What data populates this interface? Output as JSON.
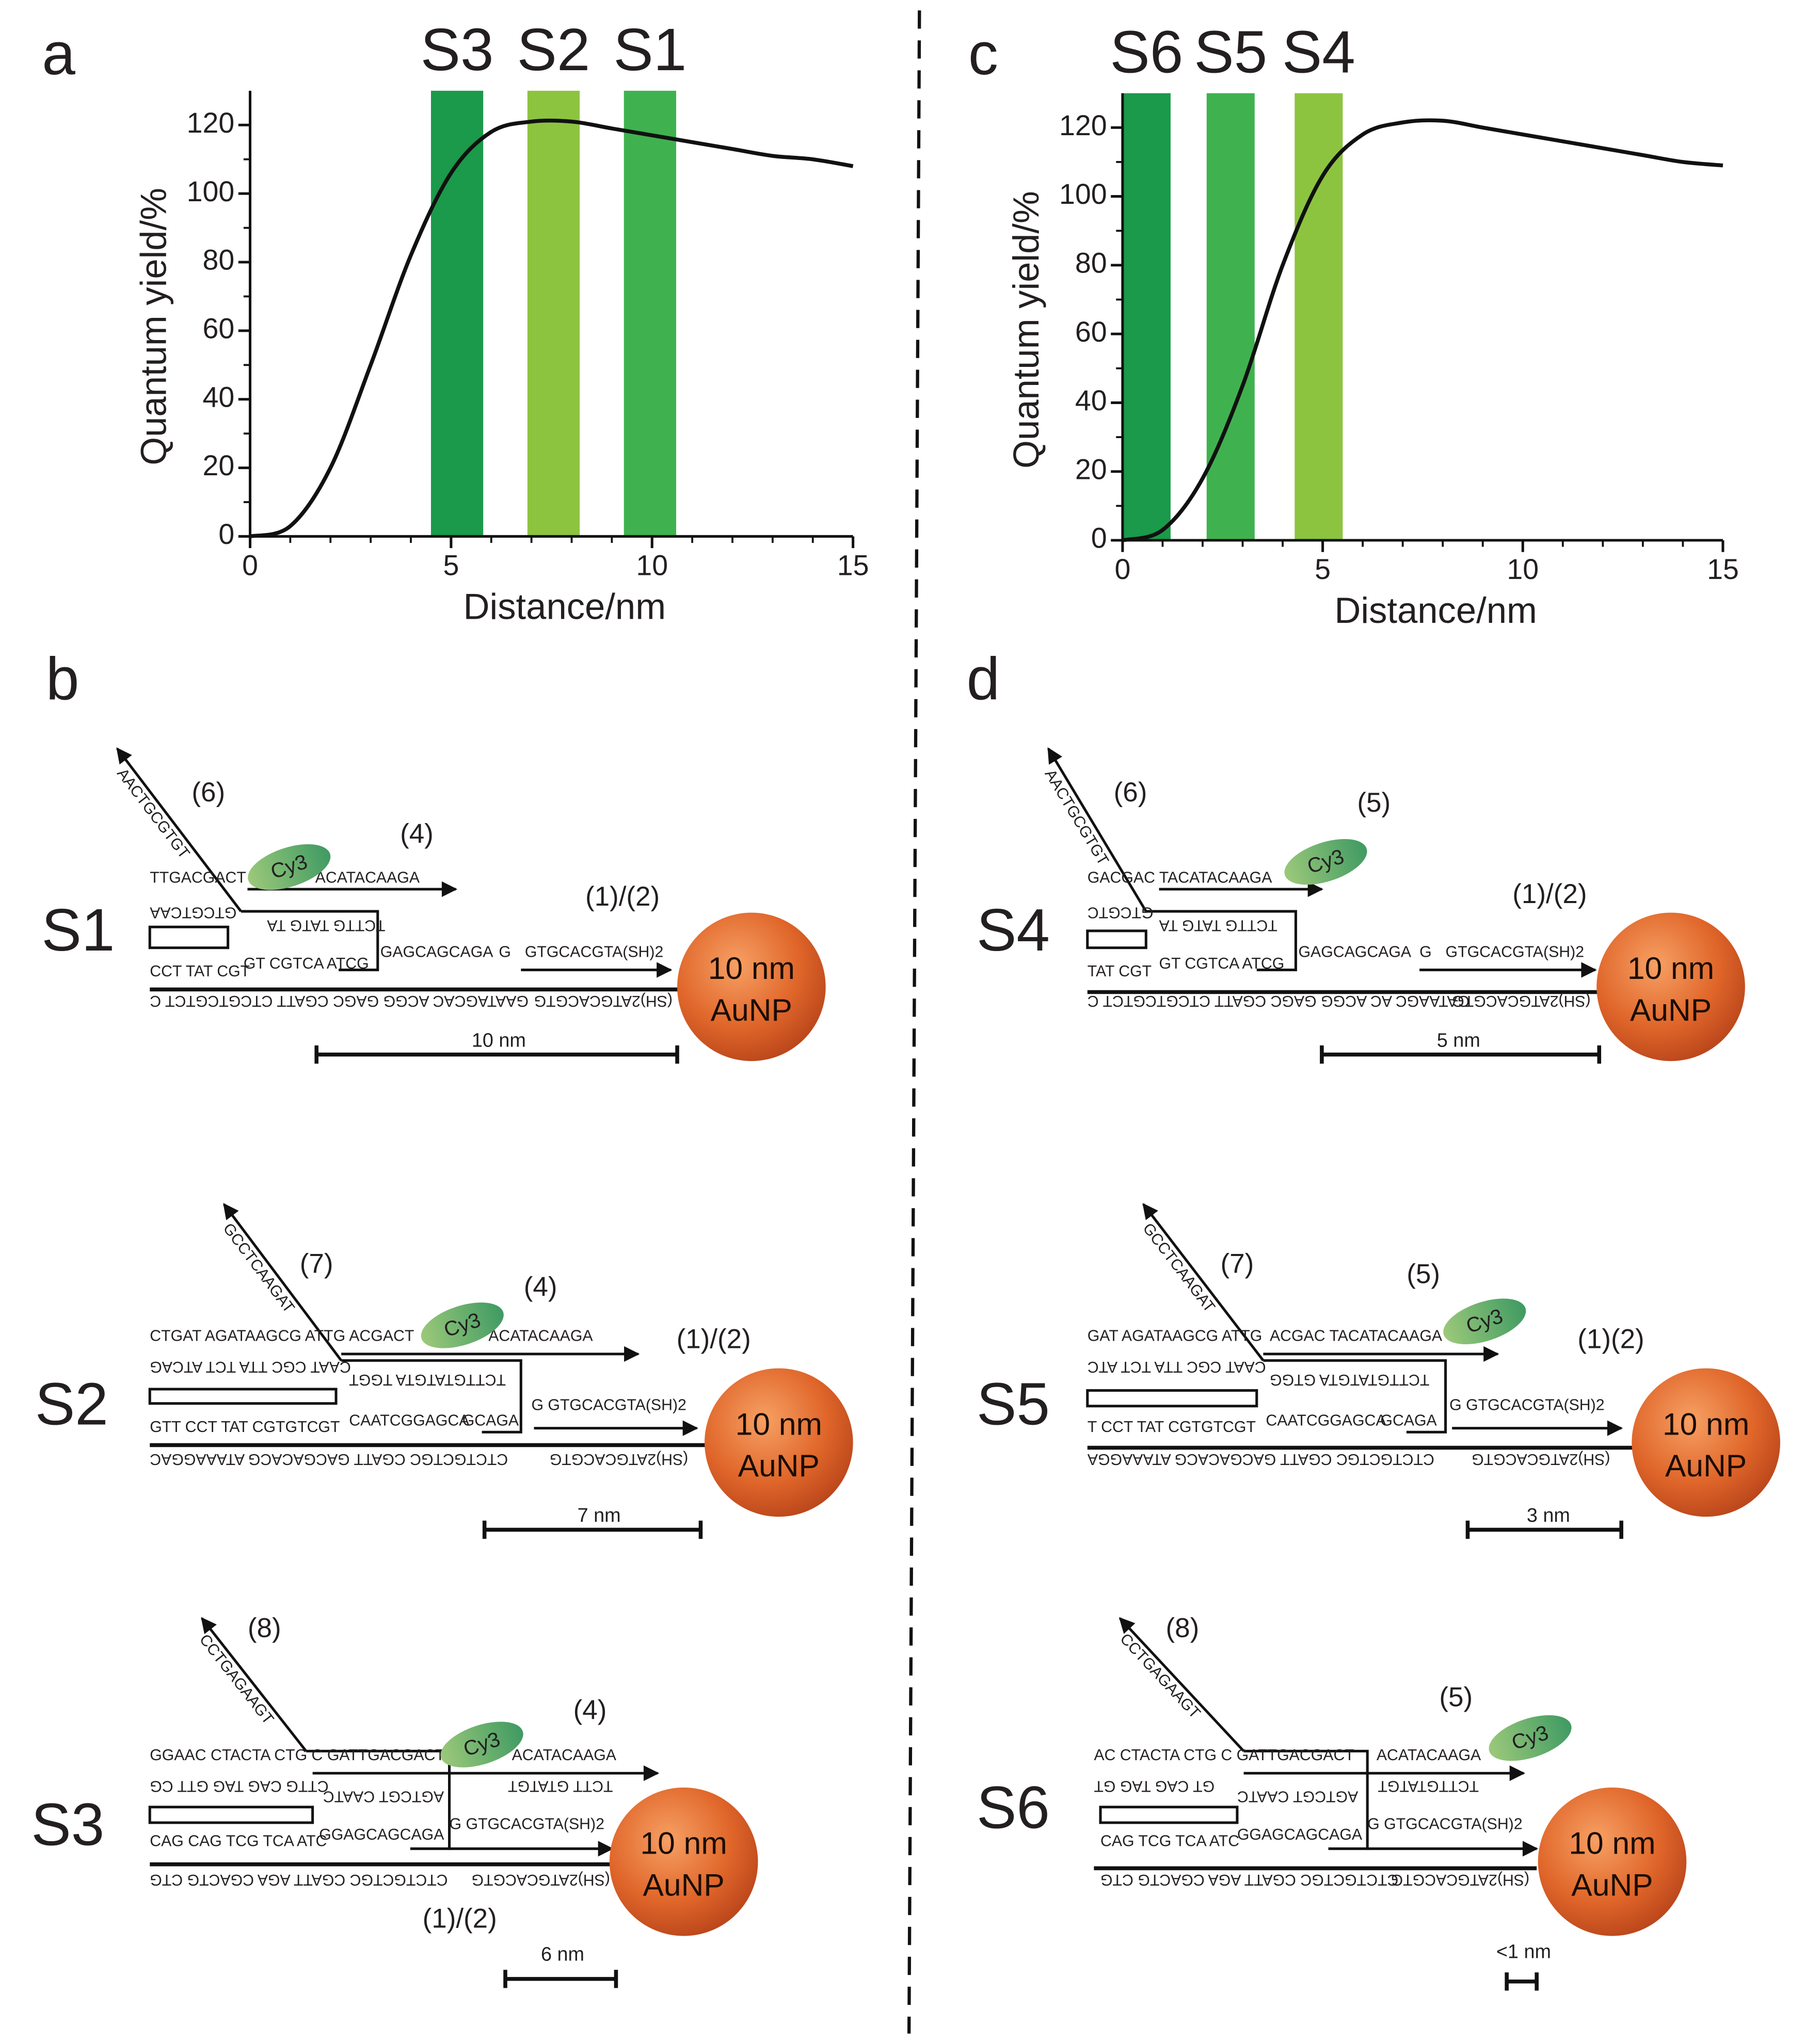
{
  "panel_labels": [
    "a",
    "b",
    "c",
    "d"
  ],
  "chart_data": [
    {
      "type": "line",
      "xlabel": "Distance/nm",
      "ylabel": "Quantum yield/%",
      "x": [
        0,
        1,
        2,
        3,
        4,
        5,
        6,
        7,
        8,
        9,
        10,
        11,
        12,
        13,
        14,
        15
      ],
      "series": [
        {
          "color": "#111111",
          "values": [
            0,
            3,
            20,
            50,
            82,
            106,
            118,
            121,
            121,
            119,
            117,
            115,
            113,
            111,
            110,
            108
          ]
        }
      ],
      "bands": [
        {
          "name": "S3",
          "color": "#1a9a4a",
          "range": [
            4.5,
            5.8
          ]
        },
        {
          "name": "S2",
          "color": "#8cc43f",
          "range": [
            6.9,
            8.2
          ]
        },
        {
          "name": "S1",
          "color": "#3fb24f",
          "range": [
            9.3,
            10.6
          ]
        }
      ],
      "xlim": [
        0,
        15
      ],
      "ylim": [
        0,
        130
      ],
      "xticks": [
        0,
        5,
        10,
        15
      ],
      "yticks": [
        0,
        20,
        40,
        60,
        80,
        100,
        120
      ]
    },
    {
      "type": "line",
      "xlabel": "Distance/nm",
      "ylabel": "Quantum yield/%",
      "x": [
        0,
        1,
        2,
        3,
        4,
        5,
        6,
        7,
        8,
        9,
        10,
        11,
        12,
        13,
        14,
        15
      ],
      "series": [
        {
          "color": "#111111",
          "values": [
            0,
            3,
            18,
            45,
            80,
            106,
            118,
            121.5,
            122,
            120,
            118,
            116,
            114,
            112,
            110,
            109
          ]
        }
      ],
      "bands": [
        {
          "name": "S6",
          "color": "#1a9a4a",
          "range": [
            0,
            1.2
          ]
        },
        {
          "name": "S5",
          "color": "#3fb24f",
          "range": [
            2.1,
            3.3
          ]
        },
        {
          "name": "S4",
          "color": "#8cc43f",
          "range": [
            4.3,
            5.5
          ]
        }
      ],
      "xlim": [
        0,
        15
      ],
      "ylim": [
        0,
        130
      ],
      "xticks": [
        0,
        5,
        10,
        15
      ],
      "yticks": [
        0,
        20,
        40,
        60,
        80,
        100,
        120
      ]
    }
  ],
  "diagrams": [
    {
      "label": "S1",
      "numbers": [
        "(6)",
        "(4)",
        "(1)/(2)"
      ],
      "dye": "Cy3",
      "nanoparticle": [
        "10 nm",
        "AuNP"
      ],
      "scale": "10 nm",
      "sequences": [
        {
          "text": "AACTGCGTGT",
          "color": "#231f20"
        },
        {
          "text": "TTGACGACT",
          "color": "#231f20"
        },
        {
          "text": "ACATACAAGA",
          "color": "#231f20"
        },
        {
          "text": "GTCGTCAA",
          "color": "#231f20"
        },
        {
          "text": "TCTTG TATG TA",
          "color": "#231f20"
        },
        {
          "text": "CCT TAT CGT",
          "color": "#231f20"
        },
        {
          "text": "GT CGTCA  ATCG",
          "color": "#231f20"
        },
        {
          "text": "GAGCAGCAGA",
          "color": "#3aa935"
        },
        {
          "text": "G",
          "color": "#231f20"
        },
        {
          "text": "GTGCACGTA(SH)2",
          "color": "#2a4f9a"
        },
        {
          "text": "GAATAGCAC ACGG GAGC CGATT CTCGTCGTCT C",
          "color": "#231f20"
        },
        {
          "text": "(SH)2ATGCACGTG",
          "color": "#c0392b"
        }
      ]
    },
    {
      "label": "S2",
      "numbers": [
        "(7)",
        "(4)",
        "(1)/(2)"
      ],
      "dye": "Cy3",
      "nanoparticle": [
        "10 nm",
        "AuNP"
      ],
      "scale": "7 nm",
      "sequences": [
        {
          "text": "GCCTCAAGAT",
          "color": "#231f20"
        },
        {
          "text": "CTGAT AGATAAGCG ATTG",
          "color": "#231f20"
        },
        {
          "text": "ACGACT",
          "color": "#231f20"
        },
        {
          "text": "ACATACAAGA",
          "color": "#231f20"
        },
        {
          "text": "CAAT CGC TTA TCT ATCAG",
          "color": "#231f20"
        },
        {
          "text": "TCTTGTATGTA TGGT",
          "color": "#231f20"
        },
        {
          "text": "GTT CCT TAT CGTGTCGT",
          "color": "#231f20"
        },
        {
          "text": "CAATCGGAGCA",
          "color": "#231f20"
        },
        {
          "text": "GCAGA",
          "color": "#3aa935"
        },
        {
          "text": "G GTGCACGTA(SH)2",
          "color": "#2a4f9a"
        },
        {
          "text": "CTCTGCTGC CGATT GACGACACG ATAAAGGAC",
          "color": "#231f20"
        },
        {
          "text": "(SH)2ATGCACGTG",
          "color": "#c0392b"
        }
      ]
    },
    {
      "label": "S3",
      "numbers": [
        "(8)",
        "(4)",
        "(1)/(2)"
      ],
      "dye": "Cy3",
      "nanoparticle": [
        "10 nm",
        "AuNP"
      ],
      "scale": "6 nm",
      "sequences": [
        {
          "text": "CCTGAGAAGT",
          "color": "#231f20"
        },
        {
          "text": "GGAAC CTACTA CTG C GATTGACGACT",
          "color": "#231f20"
        },
        {
          "text": "ACATACAAGA",
          "color": "#231f20"
        },
        {
          "text": "CTTG CAG TAG GTT CG",
          "color": "#231f20"
        },
        {
          "text": "TCTT GTATGT",
          "color": "#3aa935"
        },
        {
          "text": "AGTCGT CAATC",
          "color": "#231f20"
        },
        {
          "text": "CAG CAG TCG TCA ATC",
          "color": "#231f20"
        },
        {
          "text": "GGAGCAGCAGA",
          "color": "#231f20"
        },
        {
          "text": "G GTGCACGTA(SH)2",
          "color": "#2a4f9a"
        },
        {
          "text": "CTCTGCTGC CGATT AGA CGACTG CTG",
          "color": "#231f20"
        },
        {
          "text": "(SH)2ATGCACGTG",
          "color": "#c0392b"
        }
      ]
    },
    {
      "label": "S4",
      "numbers": [
        "(6)",
        "(5)",
        "(1)/(2)"
      ],
      "dye": "Cy3",
      "nanoparticle": [
        "10 nm",
        "AuNP"
      ],
      "scale": "5 nm",
      "sequences": [
        {
          "text": "AACTGCGTGT",
          "color": "#231f20"
        },
        {
          "text": "GACGAC TACATACAAGA",
          "color": "#231f20"
        },
        {
          "text": "GTCGTC",
          "color": "#231f20"
        },
        {
          "text": "TCTTG TATG TA",
          "color": "#231f20"
        },
        {
          "text": "TAT CGT",
          "color": "#231f20"
        },
        {
          "text": "GT CGTCA  ATCG",
          "color": "#231f20"
        },
        {
          "text": "GAGCAGCAGA",
          "color": "#3aa935"
        },
        {
          "text": "G",
          "color": "#231f20"
        },
        {
          "text": "GTGCACGTA(SH)2",
          "color": "#2a4f9a"
        },
        {
          "text": "GATAAGC AC ACGG GAGC CGATT CTCGTCGTCT C",
          "color": "#231f20"
        },
        {
          "text": "(SH)2ATGCACGTG",
          "color": "#c0392b"
        }
      ]
    },
    {
      "label": "S5",
      "numbers": [
        "(7)",
        "(5)",
        "(1)(2)"
      ],
      "dye": "Cy3",
      "nanoparticle": [
        "10 nm",
        "AuNP"
      ],
      "scale": "3 nm",
      "sequences": [
        {
          "text": "GCCTCAAGAT",
          "color": "#231f20"
        },
        {
          "text": "GAT AGATAAGCG ATTG",
          "color": "#231f20"
        },
        {
          "text": "ACGAC TACATACAAGA",
          "color": "#231f20"
        },
        {
          "text": "CAAT CGC TTA TCT ATC",
          "color": "#231f20"
        },
        {
          "text": "TCTTGTATGTA GTGG",
          "color": "#231f20"
        },
        {
          "text": "T CCT TAT CGTGTCGT",
          "color": "#231f20"
        },
        {
          "text": "CAATCGGAGCA",
          "color": "#231f20"
        },
        {
          "text": "GCAGA",
          "color": "#3aa935"
        },
        {
          "text": "G GTGCACGTA(SH)2",
          "color": "#2a4f9a"
        },
        {
          "text": "CTCTGCTGC CGATT GACGACACG ATAAAGGA",
          "color": "#231f20"
        },
        {
          "text": "(SH)2ATGCACGTG",
          "color": "#c0392b"
        }
      ]
    },
    {
      "label": "S6",
      "numbers": [
        "(8)",
        "(5)"
      ],
      "dye": "Cy3",
      "nanoparticle": [
        "10 nm",
        "AuNP"
      ],
      "scale": "<1 nm",
      "sequences": [
        {
          "text": "CCTGAGAAGT",
          "color": "#231f20"
        },
        {
          "text": "AC CTACTA CTG C GATTGACGACT",
          "color": "#231f20"
        },
        {
          "text": "ACATACAAGA",
          "color": "#231f20"
        },
        {
          "text": "GT CAG TAG GT",
          "color": "#231f20"
        },
        {
          "text": "TCTTGTATGT",
          "color": "#3aa935"
        },
        {
          "text": "AGTCGT CAATC",
          "color": "#231f20"
        },
        {
          "text": "CAG TCG TCA ATC",
          "color": "#231f20"
        },
        {
          "text": "GGAGCAGCAGA",
          "color": "#231f20"
        },
        {
          "text": "G GTGCACGTA(SH)2",
          "color": "#2a4f9a"
        },
        {
          "text": "CTCTGCTGC CGATT AGA CGACTG CTG",
          "color": "#231f20"
        },
        {
          "text": "(SH)2ATGCACGTG",
          "color": "#c0392b"
        }
      ]
    }
  ]
}
